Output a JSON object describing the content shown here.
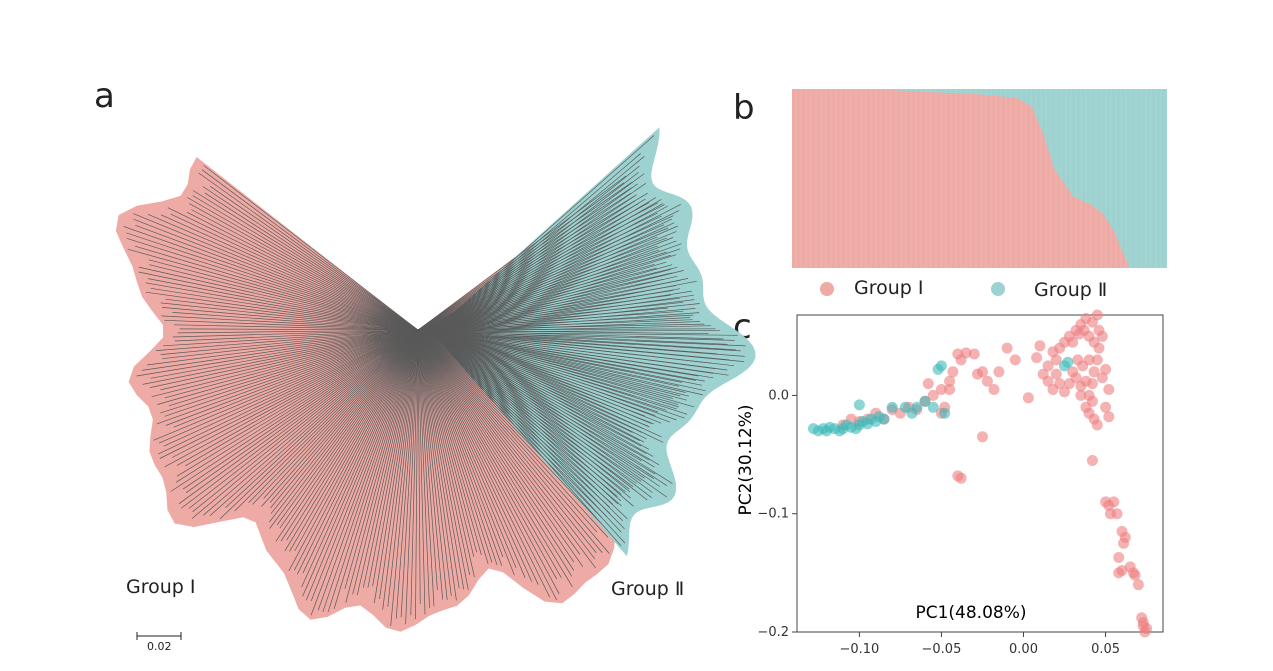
{
  "panel_labels": {
    "a": "a",
    "b": "b",
    "c": "c"
  },
  "colors": {
    "group1": "#eeaaa4",
    "group2": "#9dd2d0",
    "point1": "#ef7f80",
    "point2": "#3fb9b9",
    "branch": "#5a5a5a"
  },
  "chart_data": [
    {
      "type": "tree",
      "group_labels": [
        "Group Ⅰ",
        "Group Ⅱ"
      ],
      "scale_bar_label": "0.02"
    },
    {
      "type": "area",
      "legend": [
        "Group Ⅰ",
        "Group Ⅱ"
      ],
      "legend_placement": "bottom",
      "ylim": [
        0,
        1
      ],
      "group1_fraction_boundary": [
        [
          0,
          1.0
        ],
        [
          0.25,
          0.995
        ],
        [
          0.35,
          0.985
        ],
        [
          0.5,
          0.97
        ],
        [
          0.6,
          0.95
        ],
        [
          0.64,
          0.9
        ],
        [
          0.67,
          0.75
        ],
        [
          0.7,
          0.55
        ],
        [
          0.75,
          0.4
        ],
        [
          0.8,
          0.35
        ],
        [
          0.83,
          0.3
        ],
        [
          0.86,
          0.2
        ],
        [
          0.88,
          0.1
        ],
        [
          0.9,
          0.0
        ],
        [
          1.0,
          0.0
        ]
      ]
    },
    {
      "type": "scatter",
      "xlabel": "PC1(48.08%)",
      "ylabel": "PC2(30.12%)",
      "xlim": [
        -0.138,
        0.085
      ],
      "ylim": [
        -0.2,
        0.068
      ],
      "xticks": [
        -0.1,
        -0.05,
        0.0,
        0.05
      ],
      "xtick_labels": [
        "−0.10",
        "−0.05",
        "0.00",
        "0.05"
      ],
      "yticks": [
        0.0,
        -0.1,
        -0.2
      ],
      "ytick_labels": [
        "0.0",
        "−0.1",
        "−0.2"
      ],
      "series": [
        {
          "name": "Group Ⅰ",
          "points": [
            [
              -0.11,
              -0.025
            ],
            [
              -0.105,
              -0.02
            ],
            [
              -0.1,
              -0.022
            ],
            [
              -0.095,
              -0.02
            ],
            [
              -0.09,
              -0.015
            ],
            [
              -0.085,
              -0.02
            ],
            [
              -0.08,
              -0.012
            ],
            [
              -0.075,
              -0.015
            ],
            [
              -0.07,
              -0.01
            ],
            [
              -0.065,
              -0.012
            ],
            [
              -0.06,
              -0.005
            ],
            [
              -0.058,
              0.01
            ],
            [
              -0.055,
              0.0
            ],
            [
              -0.05,
              0.005
            ],
            [
              -0.048,
              -0.01
            ],
            [
              -0.045,
              0.012
            ],
            [
              -0.043,
              0.02
            ],
            [
              -0.04,
              0.035
            ],
            [
              -0.038,
              0.03
            ],
            [
              -0.035,
              0.036
            ],
            [
              -0.03,
              0.035
            ],
            [
              -0.028,
              0.018
            ],
            [
              -0.025,
              0.02
            ],
            [
              -0.022,
              0.012
            ],
            [
              -0.018,
              0.005
            ],
            [
              -0.015,
              0.02
            ],
            [
              -0.01,
              0.04
            ],
            [
              -0.005,
              0.03
            ],
            [
              -0.025,
              -0.035
            ],
            [
              -0.038,
              -0.07
            ],
            [
              -0.04,
              -0.068
            ],
            [
              -0.045,
              0.005
            ],
            [
              -0.05,
              -0.015
            ],
            [
              0.003,
              -0.002
            ],
            [
              0.008,
              0.032
            ],
            [
              0.01,
              0.042
            ],
            [
              0.015,
              0.025
            ],
            [
              0.018,
              0.037
            ],
            [
              0.02,
              0.03
            ],
            [
              0.022,
              0.04
            ],
            [
              0.025,
              0.045
            ],
            [
              0.028,
              0.05
            ],
            [
              0.03,
              0.045
            ],
            [
              0.032,
              0.055
            ],
            [
              0.034,
              0.052
            ],
            [
              0.035,
              0.06
            ],
            [
              0.037,
              0.055
            ],
            [
              0.038,
              0.065
            ],
            [
              0.04,
              0.05
            ],
            [
              0.042,
              0.062
            ],
            [
              0.043,
              0.045
            ],
            [
              0.045,
              0.068
            ],
            [
              0.046,
              0.04
            ],
            [
              0.048,
              0.05
            ],
            [
              0.03,
              0.02
            ],
            [
              0.033,
              0.03
            ],
            [
              0.036,
              0.025
            ],
            [
              0.04,
              0.03
            ],
            [
              0.043,
              0.02
            ],
            [
              0.045,
              0.03
            ],
            [
              0.028,
              0.01
            ],
            [
              0.032,
              0.015
            ],
            [
              0.035,
              0.008
            ],
            [
              0.038,
              0.012
            ],
            [
              0.04,
              0.0
            ],
            [
              0.042,
              0.01
            ],
            [
              0.02,
              0.018
            ],
            [
              0.022,
              0.01
            ],
            [
              0.015,
              0.012
            ],
            [
              0.012,
              0.018
            ],
            [
              0.018,
              0.005
            ],
            [
              0.025,
              0.003
            ],
            [
              0.04,
              -0.015
            ],
            [
              0.043,
              -0.02
            ],
            [
              0.045,
              -0.025
            ],
            [
              0.05,
              -0.01
            ],
            [
              0.052,
              -0.018
            ],
            [
              0.042,
              -0.005
            ],
            [
              0.038,
              -0.01
            ],
            [
              0.035,
              0.0
            ],
            [
              0.048,
              0.015
            ],
            [
              0.05,
              0.022
            ],
            [
              0.052,
              0.005
            ],
            [
              0.046,
              0.055
            ],
            [
              0.042,
              -0.055
            ],
            [
              0.05,
              -0.09
            ],
            [
              0.052,
              -0.093
            ],
            [
              0.055,
              -0.09
            ],
            [
              0.053,
              -0.1
            ],
            [
              0.057,
              -0.1
            ],
            [
              0.06,
              -0.115
            ],
            [
              0.062,
              -0.12
            ],
            [
              0.061,
              -0.125
            ],
            [
              0.058,
              -0.137
            ],
            [
              0.06,
              -0.148
            ],
            [
              0.058,
              -0.15
            ],
            [
              0.065,
              -0.145
            ],
            [
              0.067,
              -0.15
            ],
            [
              0.068,
              -0.152
            ],
            [
              0.07,
              -0.16
            ],
            [
              0.072,
              -0.188
            ],
            [
              0.073,
              -0.195
            ],
            [
              0.074,
              -0.2
            ],
            [
              0.075,
              -0.197
            ],
            [
              0.073,
              -0.192
            ]
          ]
        },
        {
          "name": "Group Ⅱ",
          "points": [
            [
              -0.128,
              -0.028
            ],
            [
              -0.125,
              -0.03
            ],
            [
              -0.122,
              -0.028
            ],
            [
              -0.12,
              -0.03
            ],
            [
              -0.118,
              -0.027
            ],
            [
              -0.115,
              -0.028
            ],
            [
              -0.112,
              -0.03
            ],
            [
              -0.11,
              -0.028
            ],
            [
              -0.108,
              -0.025
            ],
            [
              -0.105,
              -0.027
            ],
            [
              -0.102,
              -0.028
            ],
            [
              -0.1,
              -0.025
            ],
            [
              -0.098,
              -0.022
            ],
            [
              -0.095,
              -0.024
            ],
            [
              -0.093,
              -0.02
            ],
            [
              -0.09,
              -0.022
            ],
            [
              -0.088,
              -0.018
            ],
            [
              -0.085,
              -0.02
            ],
            [
              -0.1,
              -0.008
            ],
            [
              -0.08,
              -0.01
            ],
            [
              -0.072,
              -0.01
            ],
            [
              -0.068,
              -0.015
            ],
            [
              -0.065,
              -0.01
            ],
            [
              -0.06,
              -0.005
            ],
            [
              -0.055,
              -0.01
            ],
            [
              -0.052,
              0.022
            ],
            [
              -0.05,
              0.025
            ],
            [
              -0.048,
              -0.015
            ],
            [
              0.025,
              0.025
            ],
            [
              0.027,
              0.028
            ]
          ]
        }
      ]
    }
  ]
}
